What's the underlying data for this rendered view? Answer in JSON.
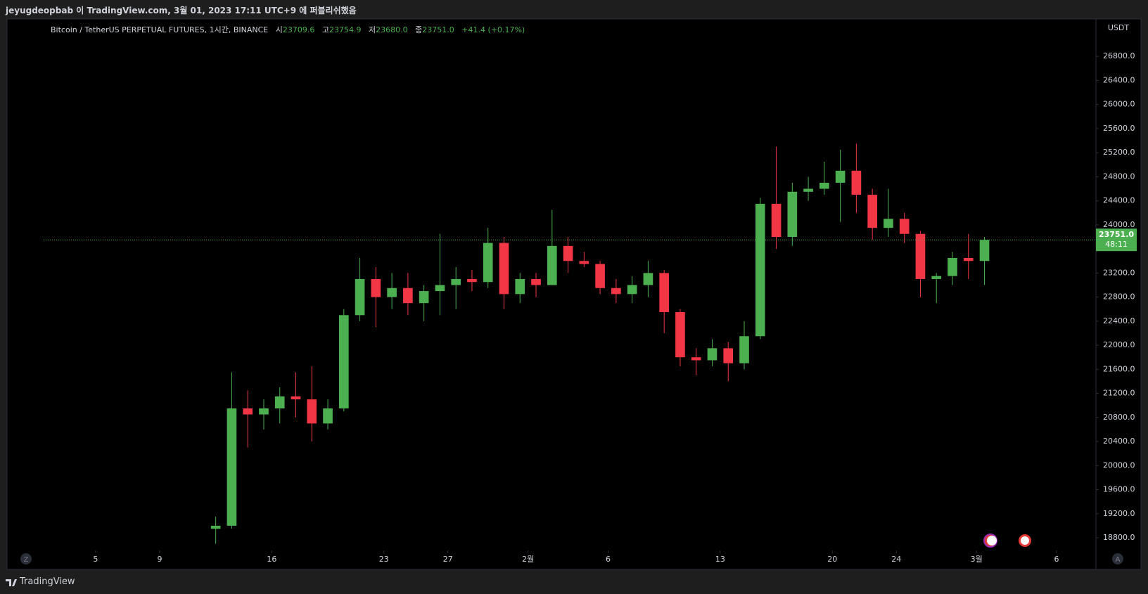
{
  "header": {
    "top_text": "jeyugdeopbab 이 TradingView.com, 3월 01, 2023 17:11 UTC+9 에 퍼블리쉬했음",
    "symbol": "Bitcoin / TetherUS PERPETUAL FUTURES, 1시간, BINANCE",
    "open_label": "시",
    "open": "23709.6",
    "high_label": "고",
    "high": "23754.9",
    "low_label": "저",
    "low": "23680.0",
    "close_label": "종",
    "close": "23751.0",
    "change": "+41.4 (+0.17%)"
  },
  "footer": {
    "brand": "TradingView"
  },
  "buttons": {
    "left": "Z",
    "right": "A"
  },
  "chart_data": {
    "type": "candlestick",
    "currency": "USDT",
    "last_price_label": "23751.0",
    "countdown": "48:11",
    "up_color": "#4caf50",
    "down_color": "#f23645",
    "x": [
      12,
      13,
      14,
      15,
      16,
      17,
      18,
      19,
      20,
      21,
      22,
      23,
      24,
      25,
      26,
      27,
      28,
      29,
      30,
      31,
      32,
      33,
      34,
      35,
      36,
      37,
      38,
      39,
      40,
      41,
      42,
      43,
      44,
      45,
      46,
      47,
      48,
      49,
      50,
      51,
      52,
      53,
      54,
      55,
      56,
      57,
      58,
      59,
      60
    ],
    "open": [
      18950,
      19000,
      20950,
      20850,
      20950,
      21150,
      21100,
      20700,
      20950,
      22500,
      23100,
      22800,
      22950,
      22700,
      22900,
      23000,
      23100,
      23050,
      23700,
      22850,
      23100,
      23000,
      23650,
      23400,
      23350,
      22950,
      22850,
      23000,
      23200,
      22550,
      21800,
      21750,
      21950,
      21700,
      22150,
      24350,
      23800,
      24550,
      24600,
      24700,
      24900,
      24500,
      23950,
      24100,
      23850,
      23100,
      23150,
      23450,
      23400
    ],
    "high": [
      19150,
      21550,
      21250,
      21100,
      21300,
      21550,
      21650,
      21100,
      22600,
      23450,
      23300,
      23200,
      23200,
      23000,
      23850,
      23300,
      23250,
      23950,
      23800,
      23200,
      23200,
      24250,
      23800,
      23550,
      23400,
      23100,
      23150,
      23400,
      23250,
      22600,
      21950,
      22100,
      22050,
      22400,
      24450,
      25300,
      24700,
      24800,
      25050,
      25250,
      25350,
      24600,
      24600,
      24200,
      23900,
      23200,
      23550,
      23850,
      23800
    ],
    "low": [
      18700,
      18950,
      20300,
      20600,
      20700,
      20800,
      20400,
      20600,
      20900,
      22400,
      22300,
      22600,
      22500,
      22400,
      22500,
      22600,
      22900,
      22950,
      22600,
      22700,
      22800,
      23000,
      23200,
      23300,
      22850,
      22700,
      22700,
      22800,
      22200,
      21650,
      21500,
      21650,
      21400,
      21600,
      22100,
      23600,
      23650,
      24400,
      24500,
      24050,
      24200,
      23750,
      23800,
      23700,
      22800,
      22700,
      23000,
      23100,
      23000
    ],
    "close": [
      19000,
      20950,
      20850,
      20950,
      21150,
      21100,
      20700,
      20950,
      22500,
      23100,
      22800,
      22950,
      22700,
      22900,
      23000,
      23100,
      23050,
      23700,
      22850,
      23100,
      23000,
      23650,
      23400,
      23350,
      22950,
      22850,
      23000,
      23200,
      22550,
      21800,
      21750,
      21950,
      21700,
      22150,
      24350,
      23800,
      24550,
      24600,
      24700,
      24900,
      24500,
      23950,
      24100,
      23850,
      23100,
      23150,
      23450,
      23400,
      23751
    ],
    "xlim": [
      -0.53,
      67.46
    ],
    "xticks": [
      5,
      9,
      16,
      23,
      27,
      {
        "value": 32,
        "label": "2월"
      },
      {
        "value": 37,
        "label": "6"
      },
      {
        "value": 44,
        "label": "13"
      },
      {
        "value": 51,
        "label": "20"
      },
      {
        "value": 55,
        "label": "24"
      },
      {
        "value": 60,
        "label": "3월"
      },
      {
        "value": 65,
        "label": "6"
      }
    ],
    "ylim": [
      18590,
      27410
    ],
    "yticks": [
      {
        "value": 18800,
        "label": "18800.0"
      },
      {
        "value": 19200,
        "label": "19200.0"
      },
      {
        "value": 19600,
        "label": "19600.0"
      },
      {
        "value": 20000,
        "label": "20000.0"
      },
      {
        "value": 20400,
        "label": "20400.0"
      },
      {
        "value": 20800,
        "label": "20800.0"
      },
      {
        "value": 21200,
        "label": "21200.0"
      },
      {
        "value": 21600,
        "label": "21600.0"
      },
      {
        "value": 22000,
        "label": "22000.0"
      },
      {
        "value": 22400,
        "label": "22400.0"
      },
      {
        "value": 22800,
        "label": "22800.0"
      },
      {
        "value": 23200,
        "label": "23200.0"
      },
      {
        "value": 23600,
        "label": "23600.0"
      },
      {
        "value": 24000,
        "label": "24000.0"
      },
      {
        "value": 24400,
        "label": "24400.0"
      },
      {
        "value": 24800,
        "label": "24800.0"
      },
      {
        "value": 25200,
        "label": "25200.0"
      },
      {
        "value": 25600,
        "label": "25600.0"
      },
      {
        "value": 26000,
        "label": "26000.0"
      },
      {
        "value": 26400,
        "label": "26400.0"
      },
      {
        "value": 26800,
        "label": "26800.0"
      }
    ]
  }
}
